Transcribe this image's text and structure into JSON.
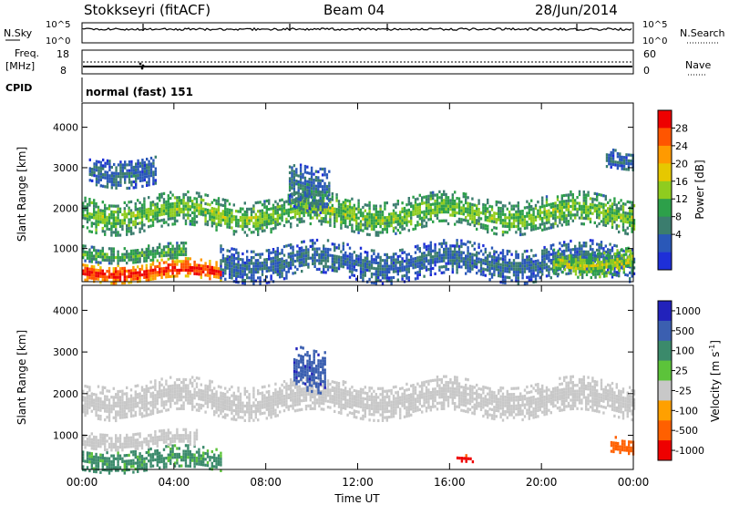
{
  "header": {
    "radar": "Stokkseyri (fitACF)",
    "beam": "Beam 04",
    "date": "28/Jun/2014"
  },
  "noise_panel": {
    "left_label": "N.Sky",
    "right_label": "N.Search",
    "ticks_left": [
      "10^5",
      "10^0"
    ],
    "ticks_right": [
      "10^5",
      "10^0"
    ]
  },
  "freq_panel": {
    "left_label_1": "Freq.",
    "left_label_2": "[MHz]",
    "ticks_left": [
      "18",
      "8"
    ],
    "ticks_right": [
      "60",
      "0"
    ],
    "right_label": "Nave"
  },
  "cpid": {
    "label": "CPID",
    "value": "normal (fast) 151"
  },
  "power_colorbar": {
    "title": "Power [dB]",
    "ticks": [
      "28",
      "24",
      "20",
      "16",
      "12",
      "8",
      "4"
    ],
    "colors": [
      "#ee0000",
      "#ff5500",
      "#ff9a00",
      "#e6c800",
      "#8fcc1f",
      "#2da04a",
      "#3b7d6e",
      "#2a58b8",
      "#1e2fd8"
    ]
  },
  "velocity_colorbar": {
    "title": "Velocity [m s",
    "title_sup": "-1",
    "title_end": "]",
    "ticks": [
      "1000",
      "500",
      "100",
      "25",
      "-25",
      "-100",
      "-500",
      "-1000"
    ],
    "colors": [
      "#2222bb",
      "#3b5fb0",
      "#3b8a6b",
      "#5cc33a",
      "#c8c8c8",
      "#ffa000",
      "#ff6000",
      "#ee0000"
    ]
  },
  "chart_data": {
    "type": "heatmap",
    "x_ticks": [
      "00:00",
      "04:00",
      "08:00",
      "12:00",
      "16:00",
      "20:00",
      "00:00"
    ],
    "xlabel": "Time UT",
    "ylabel": "Slant Range [km]",
    "y_ticks": [
      "4000",
      "3000",
      "2000",
      "1000"
    ],
    "ylim": [
      180,
      4600
    ],
    "xlim_hours": [
      0,
      24
    ],
    "panels": [
      {
        "name": "power",
        "colorbar_range_db": [
          0,
          32
        ],
        "bands": [
          {
            "x0": 0.0,
            "x1": 6.0,
            "r0": 200,
            "r1": 700,
            "level": 26
          },
          {
            "x0": 0.0,
            "x1": 4.5,
            "r0": 700,
            "r1": 1100,
            "level": 10
          },
          {
            "x0": 0.0,
            "x1": 24.0,
            "r0": 1500,
            "r1": 2300,
            "level": 12
          },
          {
            "x0": 0.3,
            "x1": 3.2,
            "r0": 2600,
            "r1": 3300,
            "level": 5
          },
          {
            "x0": 6.0,
            "x1": 24.0,
            "r0": 300,
            "r1": 1100,
            "level": 5
          },
          {
            "x0": 20.5,
            "x1": 24.0,
            "r0": 400,
            "r1": 1000,
            "level": 14
          },
          {
            "x0": 9.0,
            "x1": 10.8,
            "r0": 2100,
            "r1": 3200,
            "level": 6
          },
          {
            "x0": 22.8,
            "x1": 24.0,
            "r0": 3000,
            "r1": 3500,
            "level": 5
          }
        ]
      },
      {
        "name": "velocity",
        "colorbar_range_ms": [
          -1000,
          1000
        ],
        "bands": [
          {
            "x0": 0.0,
            "x1": 6.0,
            "r0": 200,
            "r1": 700,
            "level": 150
          },
          {
            "x0": 0.0,
            "x1": 24.0,
            "r0": 1500,
            "r1": 2300,
            "level": 0
          },
          {
            "x0": 0.0,
            "x1": 5.0,
            "r0": 700,
            "r1": 1100,
            "level": 0
          },
          {
            "x0": 9.2,
            "x1": 10.6,
            "r0": 2200,
            "r1": 3200,
            "level": 600
          },
          {
            "x0": 16.3,
            "x1": 17.0,
            "r0": 380,
            "r1": 560,
            "level": -500
          },
          {
            "x0": 23.0,
            "x1": 24.0,
            "r0": 600,
            "r1": 1000,
            "level": -300
          }
        ]
      }
    ]
  }
}
